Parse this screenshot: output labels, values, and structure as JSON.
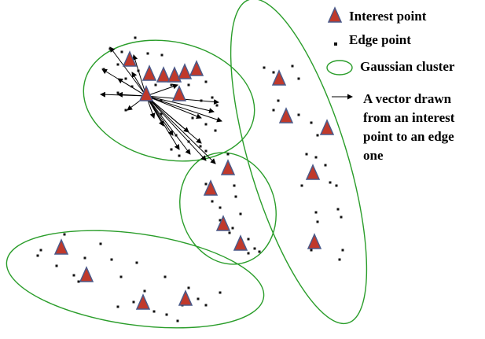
{
  "colors": {
    "cluster_outline": "#2a9d2a",
    "triangle_fill": "#c0392b",
    "triangle_edge": "#4a5a8a",
    "edge_point": "#111111",
    "vector": "#000000"
  },
  "legend": {
    "interest_point": "Interest point",
    "edge_point": "Edge point",
    "gaussian_cluster": "Gaussian cluster",
    "vector_line1": "A vector drawn",
    "vector_line2": "from an interest",
    "vector_line3": "point to an edge",
    "vector_line4": "one"
  }
}
